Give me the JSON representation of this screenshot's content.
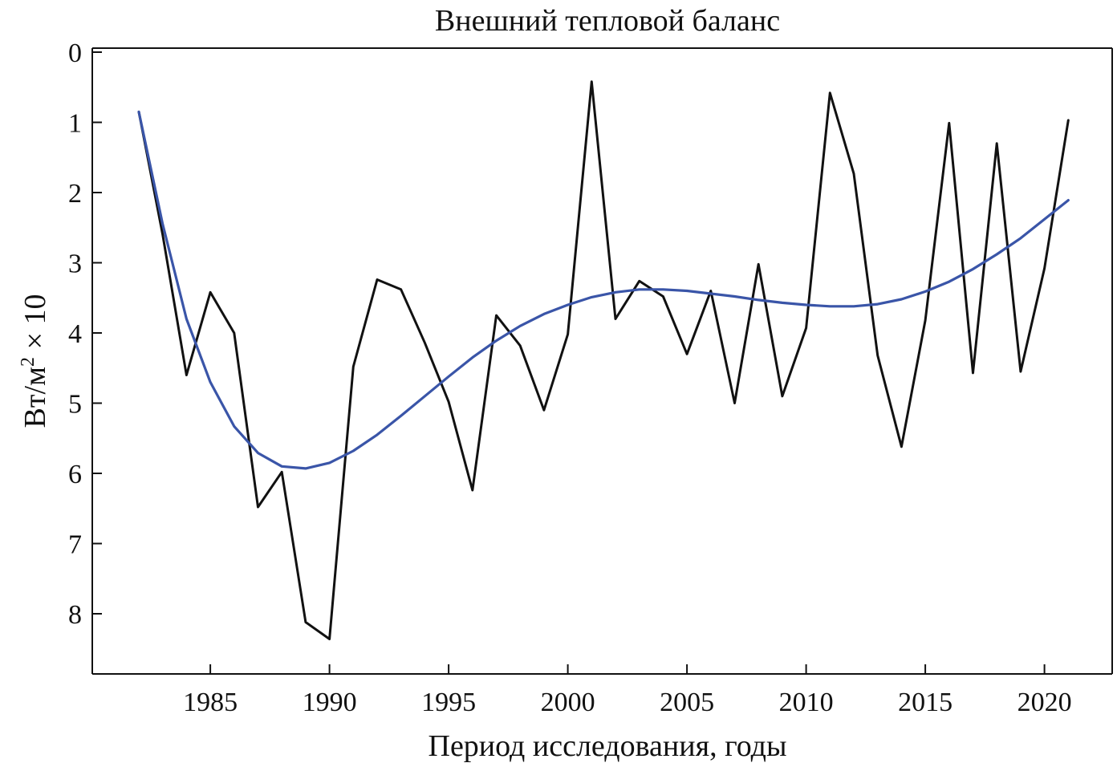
{
  "chart_data": {
    "type": "line",
    "title": "Внешний тепловой баланс",
    "xlabel": "Период исследования, годы",
    "ylabel_main": "Вт/м",
    "ylabel_sup": "2",
    "ylabel_tail": " × 10",
    "xlim": [
      1980,
      2023
    ],
    "ylim": [
      0,
      8.5
    ],
    "y_inverted": true,
    "x_ticks": [
      1985,
      1990,
      1995,
      2000,
      2005,
      2010,
      2015,
      2020
    ],
    "x_tick_labels": [
      "1985",
      "1990",
      "1995",
      "2000",
      "2005",
      "2010",
      "2015",
      "2020"
    ],
    "y_ticks": [
      0,
      1,
      2,
      3,
      4,
      5,
      6,
      7,
      8
    ],
    "y_tick_labels": [
      "0",
      "1",
      "2",
      "3",
      "4",
      "5",
      "6",
      "7",
      "8"
    ],
    "grid": false,
    "series": [
      {
        "color": "#111111",
        "x": [
          1982,
          1983,
          1984,
          1985,
          1986,
          1987,
          1988,
          1989,
          1990,
          1991,
          1992,
          1993,
          1994,
          1995,
          1996,
          1997,
          1998,
          1999,
          2000,
          2001,
          2002,
          2003,
          2004,
          2005,
          2006,
          2007,
          2008,
          2009,
          2010,
          2011,
          2012,
          2013,
          2014,
          2015,
          2016,
          2017,
          2018,
          2019,
          2020,
          2021
        ],
        "values": [
          0.85,
          2.6,
          4.6,
          3.42,
          4.0,
          6.48,
          5.98,
          8.12,
          8.36,
          4.48,
          3.24,
          3.38,
          4.14,
          4.98,
          6.24,
          3.75,
          4.18,
          5.1,
          4.02,
          0.42,
          3.8,
          3.26,
          3.48,
          4.3,
          3.4,
          5.0,
          3.02,
          4.9,
          3.93,
          0.58,
          1.73,
          4.32,
          5.62,
          3.82,
          1.01,
          4.57,
          1.3,
          4.55,
          3.08,
          0.97
        ]
      },
      {
        "color": "#3a55a8",
        "x": [
          1982,
          1983,
          1984,
          1985,
          1986,
          1987,
          1988,
          1989,
          1990,
          1991,
          1992,
          1993,
          1994,
          1995,
          1996,
          1997,
          1998,
          1999,
          2000,
          2001,
          2002,
          2003,
          2004,
          2005,
          2006,
          2007,
          2008,
          2009,
          2010,
          2011,
          2012,
          2013,
          2014,
          2015,
          2016,
          2017,
          2018,
          2019,
          2020,
          2021
        ],
        "values": [
          0.85,
          2.45,
          3.8,
          4.7,
          5.33,
          5.71,
          5.9,
          5.93,
          5.85,
          5.68,
          5.45,
          5.18,
          4.9,
          4.62,
          4.35,
          4.11,
          3.9,
          3.73,
          3.6,
          3.49,
          3.42,
          3.38,
          3.38,
          3.4,
          3.44,
          3.48,
          3.53,
          3.57,
          3.6,
          3.62,
          3.62,
          3.59,
          3.52,
          3.41,
          3.27,
          3.09,
          2.88,
          2.65,
          2.38,
          2.11
        ]
      }
    ]
  }
}
